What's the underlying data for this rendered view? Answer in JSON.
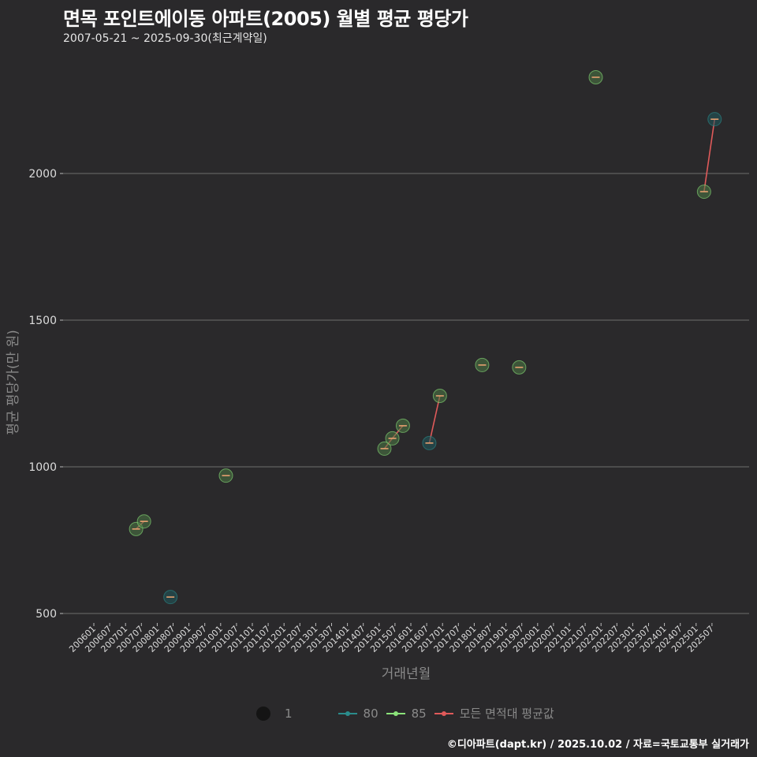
{
  "header": {
    "title": "면목 포인트에이동 아파트(2005) 월별 평균 평당가",
    "subtitle": "2007-05-21 ~ 2025-09-30(최근계약일)"
  },
  "colors": {
    "background": "#2a292b",
    "grid": "#6e6e6e",
    "series_80": "#2a8c8c",
    "series_85": "#8be37a",
    "series_avg": "#e05a5a",
    "avg_step": "#e6a070"
  },
  "legend": {
    "size_label": "1",
    "items": [
      {
        "label": "80",
        "color": "#2a8c8c"
      },
      {
        "label": "85",
        "color": "#8be37a"
      },
      {
        "label": "모든 면적대 평균값",
        "color": "#e05a5a"
      }
    ]
  },
  "footer": {
    "credit": "©디아파트(dapt.kr) / 2025.10.02 / 자료=국토교통부 실거래가"
  },
  "chart_data": {
    "type": "scatter",
    "title": "면목 포인트에이동 아파트(2005) 월별 평균 평당가",
    "subtitle": "2007-05-21 ~ 2025-09-30(최근계약일)",
    "xlabel": "거래년월",
    "ylabel": "평균 평당가(만 원)",
    "ylim": [
      480,
      2400
    ],
    "yticks": [
      500,
      1000,
      1500,
      2000
    ],
    "xticks": [
      "200601",
      "200607",
      "200701",
      "200707",
      "200801",
      "200807",
      "200901",
      "200907",
      "201001",
      "201007",
      "201101",
      "201107",
      "201201",
      "201207",
      "201301",
      "201307",
      "201401",
      "201407",
      "201501",
      "201507",
      "201601",
      "201607",
      "201701",
      "201707",
      "201801",
      "201807",
      "201901",
      "201907",
      "202001",
      "202007",
      "202101",
      "202107",
      "202201",
      "202207",
      "202301",
      "202307",
      "202401",
      "202407",
      "202501",
      "202507"
    ],
    "grid": "horizontal",
    "legend_position": "bottom",
    "series": [
      {
        "name": "80",
        "points": [
          {
            "x": "2008-06",
            "y": 556
          },
          {
            "x": "2016-08",
            "y": 1081
          },
          {
            "x": "2025-08",
            "y": 2185
          }
        ]
      },
      {
        "name": "85",
        "points": [
          {
            "x": "2007-05",
            "y": 788
          },
          {
            "x": "2007-08",
            "y": 814
          },
          {
            "x": "2010-03",
            "y": 970
          },
          {
            "x": "2015-03",
            "y": 1062
          },
          {
            "x": "2015-06",
            "y": 1097
          },
          {
            "x": "2015-10",
            "y": 1140
          },
          {
            "x": "2016-12",
            "y": 1242
          },
          {
            "x": "2018-04",
            "y": 1347
          },
          {
            "x": "2019-06",
            "y": 1339
          },
          {
            "x": "2021-11",
            "y": 2328
          },
          {
            "x": "2025-04",
            "y": 1938
          }
        ]
      },
      {
        "name": "모든 면적대 평균값",
        "points": [
          {
            "x": "2007-05",
            "y": 788
          },
          {
            "x": "2007-08",
            "y": 814
          },
          {
            "x": "2008-06",
            "y": 556
          },
          {
            "x": "2010-03",
            "y": 970
          },
          {
            "x": "2015-03",
            "y": 1062
          },
          {
            "x": "2015-06",
            "y": 1097
          },
          {
            "x": "2015-10",
            "y": 1140
          },
          {
            "x": "2016-08",
            "y": 1081
          },
          {
            "x": "2016-12",
            "y": 1242
          },
          {
            "x": "2018-04",
            "y": 1347
          },
          {
            "x": "2019-06",
            "y": 1339
          },
          {
            "x": "2021-11",
            "y": 2328
          },
          {
            "x": "2025-04",
            "y": 1938
          },
          {
            "x": "2025-08",
            "y": 2185
          }
        ]
      }
    ]
  }
}
